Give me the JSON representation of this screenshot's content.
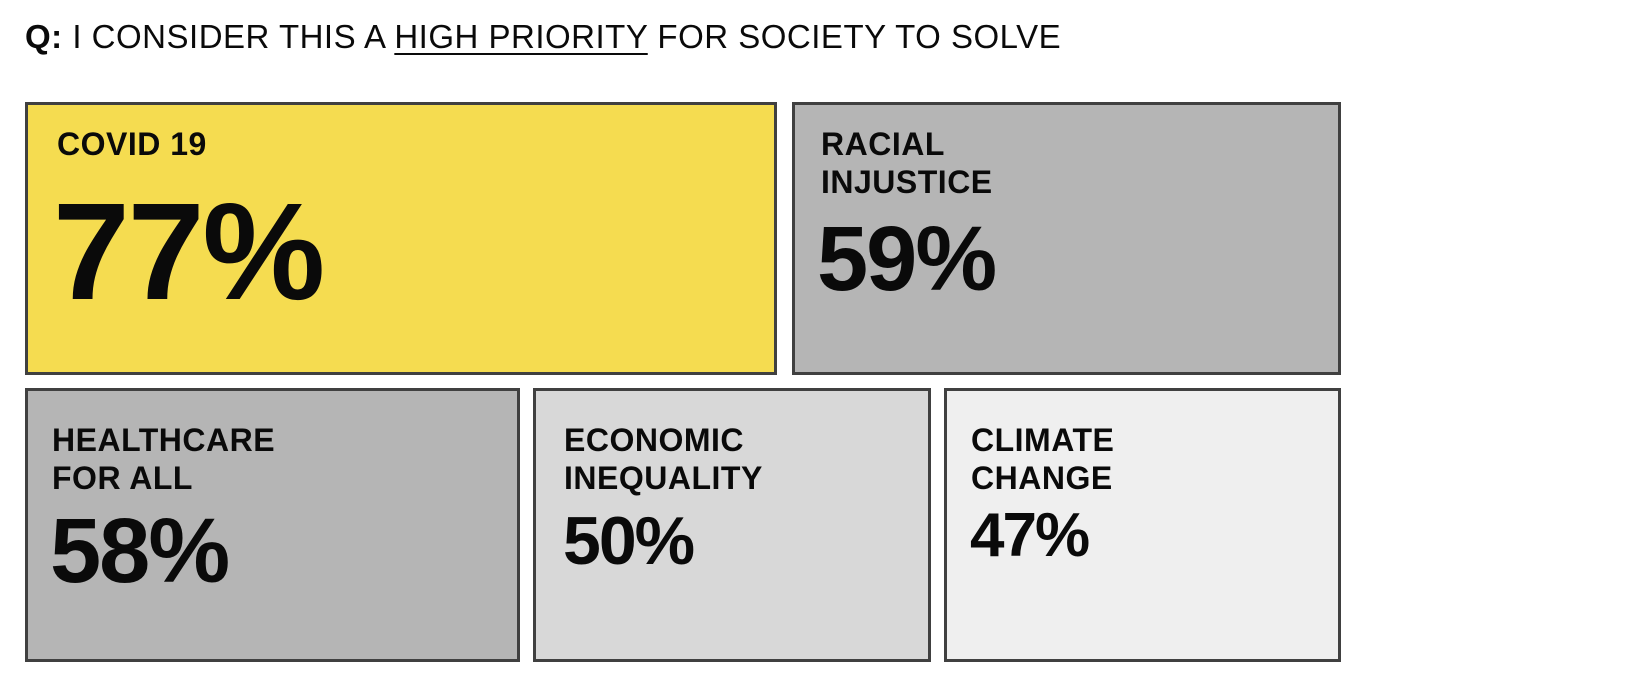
{
  "question": {
    "prefix": "Q:",
    "text_before": "I CONSIDER THIS A",
    "emphasis": "HIGH PRIORITY",
    "text_after": "FOR SOCIETY TO SOLVE"
  },
  "chart_data": {
    "type": "treemap",
    "title": "Q: I CONSIDER THIS A HIGH PRIORITY FOR SOCIETY TO SOLVE",
    "items": [
      {
        "label": "COVID 19",
        "value": 77,
        "value_label": "77%",
        "color": "#f5dc50"
      },
      {
        "label": "RACIAL\nINJUSTICE",
        "value": 59,
        "value_label": "59%",
        "color": "#b5b5b5"
      },
      {
        "label": "HEALTHCARE\nFOR ALL",
        "value": 58,
        "value_label": "58%",
        "color": "#b5b5b5"
      },
      {
        "label": "ECONOMIC\nINEQUALITY",
        "value": 50,
        "value_label": "50%",
        "color": "#d8d8d8"
      },
      {
        "label": "CLIMATE\nCHANGE",
        "value": 47,
        "value_label": "47%",
        "color": "#efefef"
      }
    ]
  }
}
